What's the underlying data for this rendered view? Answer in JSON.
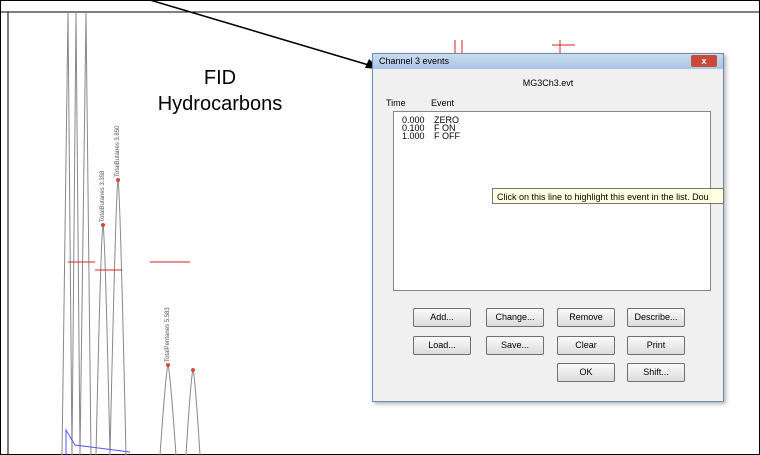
{
  "annotation": {
    "line1": "FID",
    "line2": "Hydrocarbons"
  },
  "peaks": [
    "TotalButanes 3.358",
    "TotalButanes 3.850",
    "TotalPentanes 5.583"
  ],
  "dialog": {
    "title": "Channel 3 events",
    "file": "MG3Ch3.evt",
    "columns": [
      "Time",
      "Event"
    ],
    "rows": [
      [
        "0.000",
        "ZERO"
      ],
      [
        "0.100",
        "F ON"
      ],
      [
        "1.000",
        "F OFF"
      ]
    ],
    "tooltip": "Click on this line to highlight this event in the list. Dou",
    "buttons": [
      "Add...",
      "Change...",
      "Remove",
      "Describe...",
      "Load...",
      "Save...",
      "Clear",
      "Print",
      "OK",
      "Shift..."
    ]
  }
}
